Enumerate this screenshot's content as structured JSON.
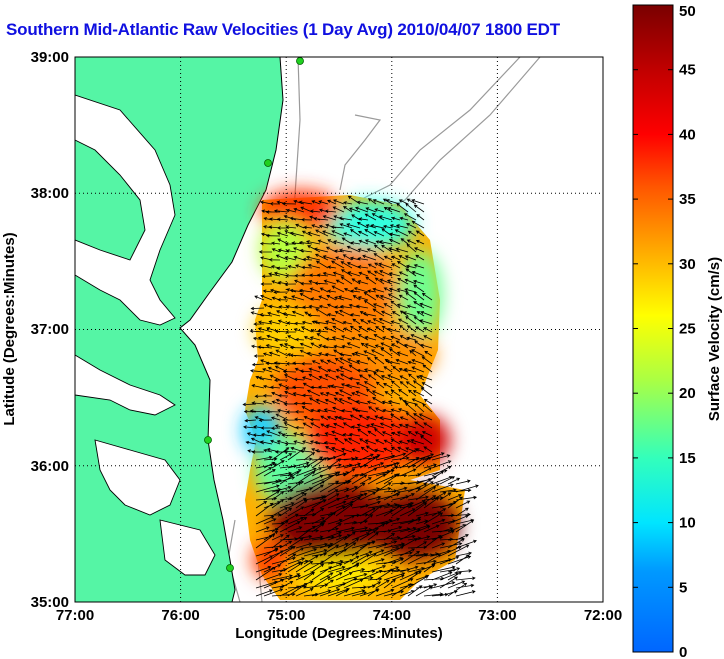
{
  "title": "Southern Mid-Atlantic Raw Velocities (1 Day Avg) 2010/04/07 1800 EDT",
  "map": {
    "xlabel": "Longitude (Degrees:Minutes)",
    "ylabel": "Latitude (Degrees:Minutes)",
    "lon_ticks": [
      "77:00",
      "76:00",
      "75:00",
      "74:00",
      "73:00",
      "72:00"
    ],
    "lat_ticks": [
      "39:00",
      "38:00",
      "37:00",
      "36:00",
      "35:00"
    ],
    "lon_range": [
      -77,
      -72
    ],
    "lat_range": [
      35,
      39
    ],
    "land_color": "#55f5a5",
    "station_color": "#20d020"
  },
  "colorbar": {
    "label": "Surface Velocity (cm/s)",
    "ticks": [
      "0",
      "5",
      "10",
      "15",
      "20",
      "25",
      "30",
      "35",
      "40",
      "45",
      "50"
    ],
    "range": [
      0,
      50
    ],
    "colormap": "jet"
  }
}
